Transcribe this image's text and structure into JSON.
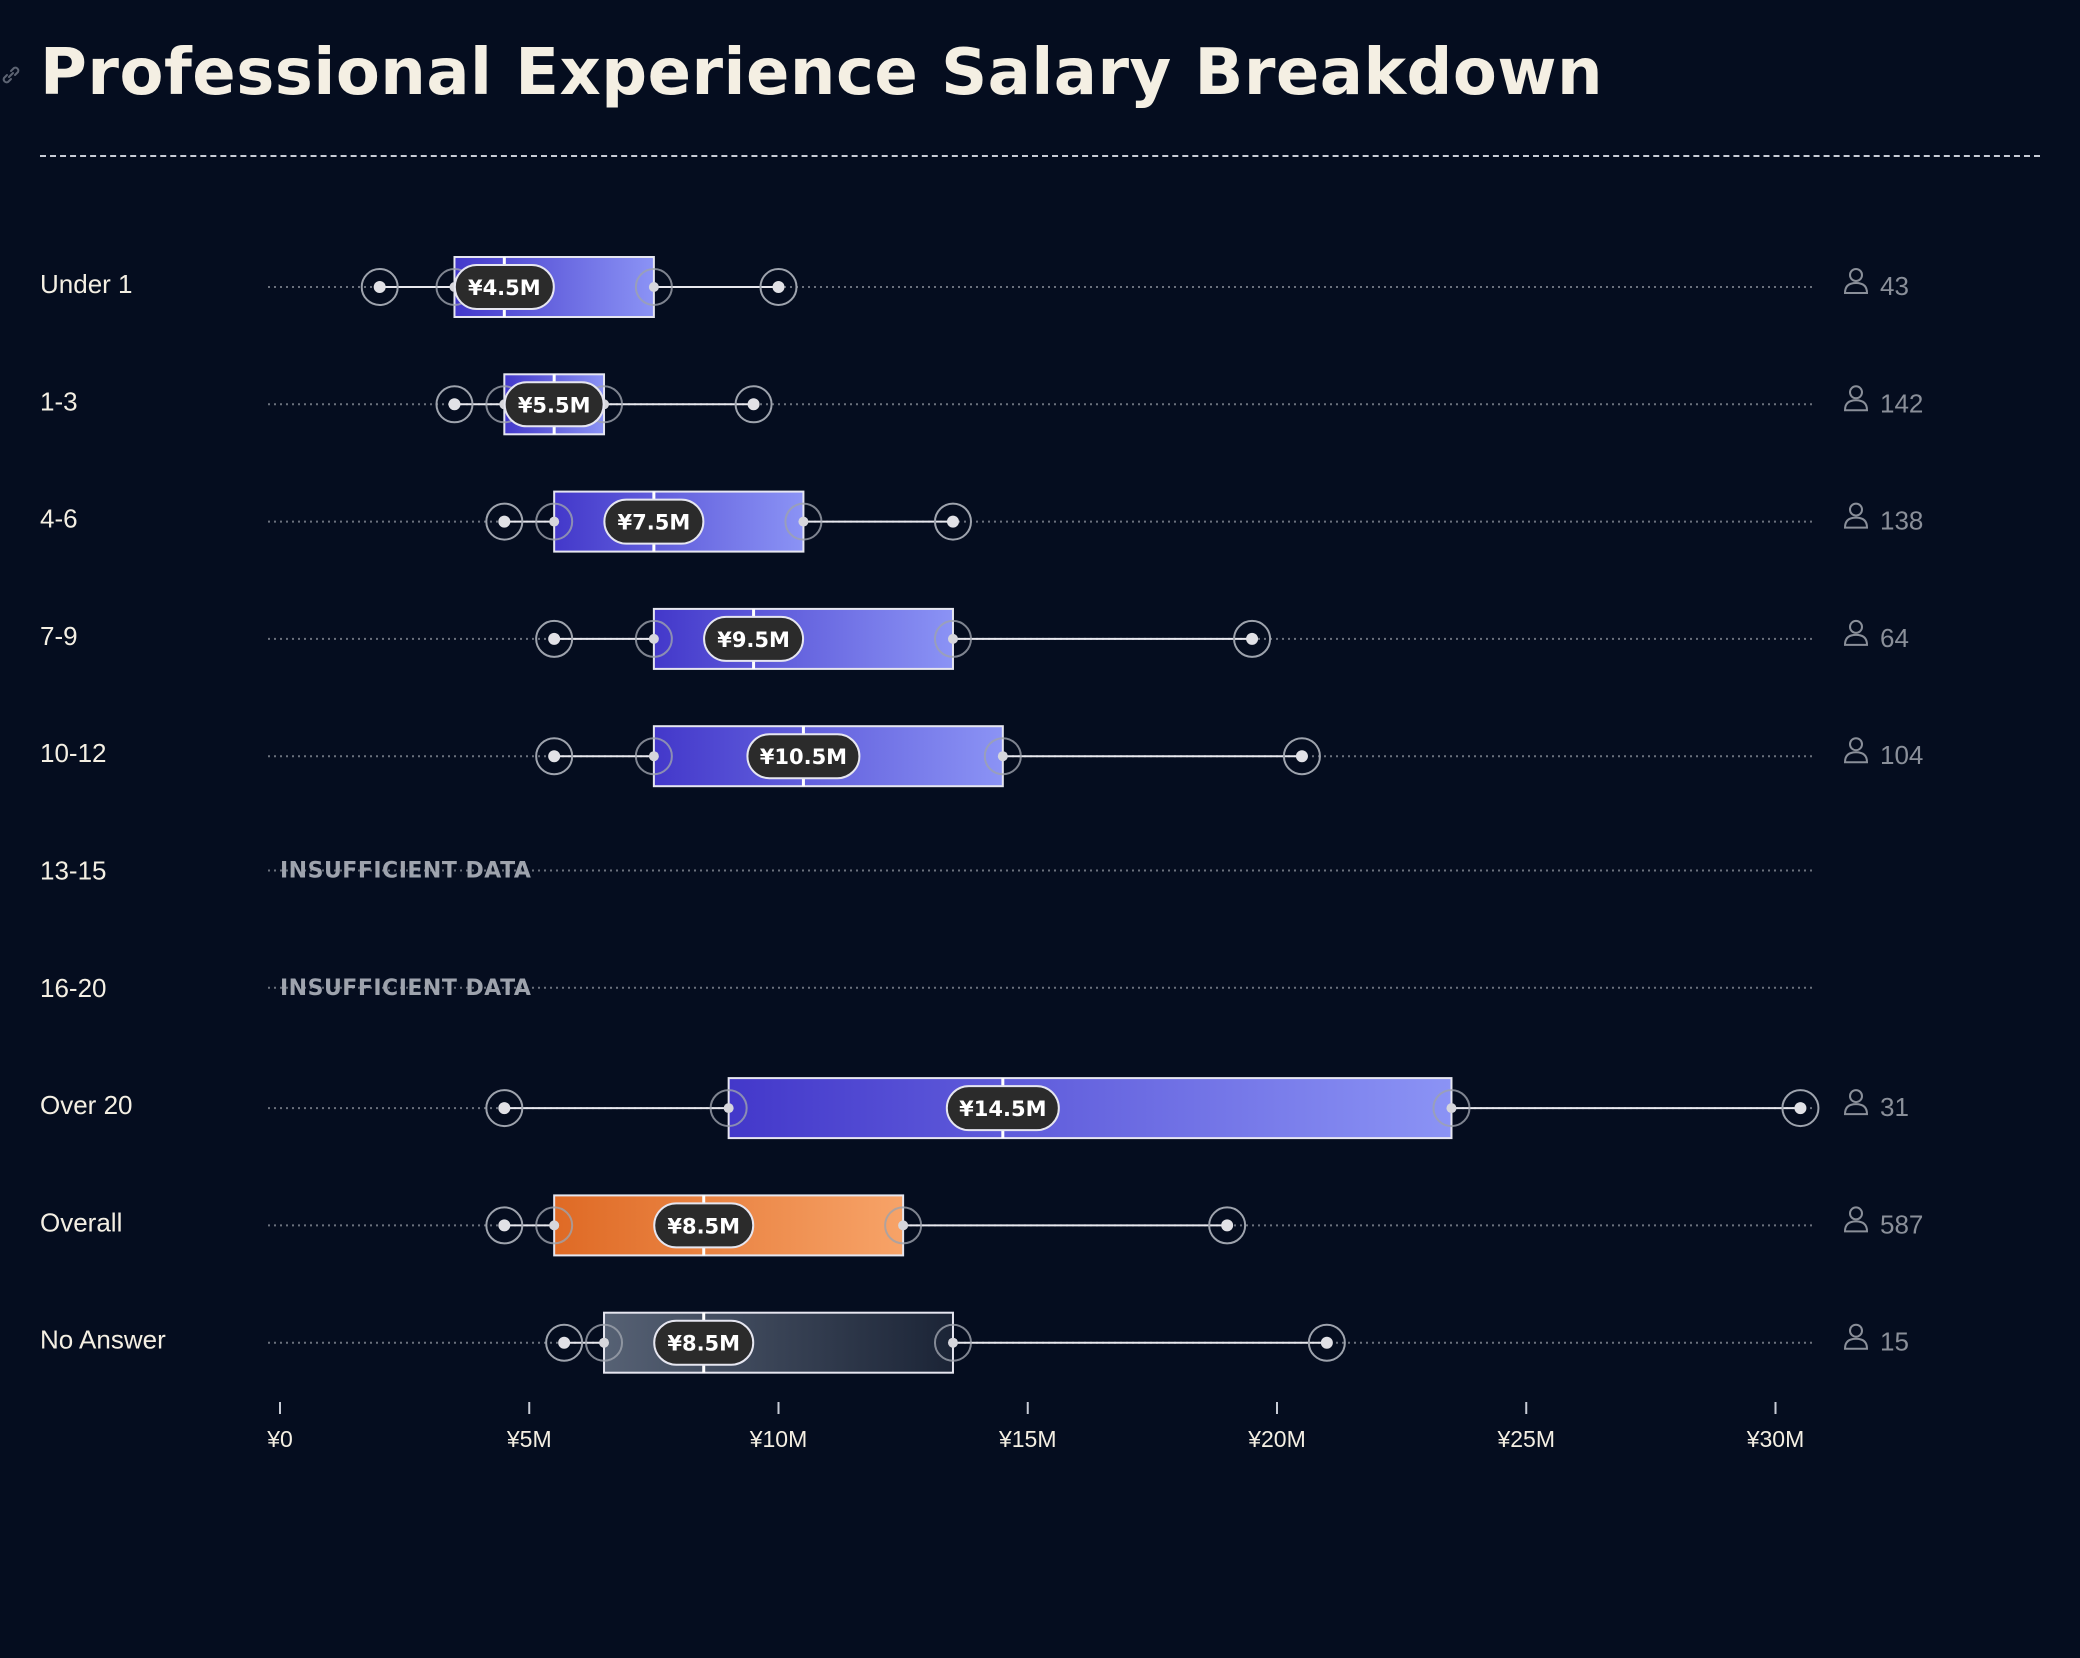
{
  "title": "Professional Experience Salary Breakdown",
  "chart_data": {
    "type": "boxplot",
    "orientation": "horizontal",
    "x_unit": "¥M",
    "xlim": [
      0,
      31
    ],
    "x_ticks": [
      {
        "value": 0,
        "label": "¥0"
      },
      {
        "value": 5,
        "label": "¥5M"
      },
      {
        "value": 10,
        "label": "¥10M"
      },
      {
        "value": 15,
        "label": "¥15M"
      },
      {
        "value": 20,
        "label": "¥20M"
      },
      {
        "value": 25,
        "label": "¥25M"
      },
      {
        "value": 30,
        "label": "¥30M"
      }
    ],
    "insufficient_label": "INSUFFICIENT DATA",
    "colors": {
      "background": "#050d1f",
      "group_box_start": "#4338ca",
      "group_box_end": "#8b93f5",
      "overall_box_start": "#df6a25",
      "overall_box_end": "#f7a368",
      "noanswer_box_start": "#566174",
      "noanswer_box_end": "#1b2436",
      "median_label_bg": "#2b2b2b",
      "text": "#f4efe3",
      "muted": "#8a8f99"
    },
    "groups": [
      {
        "label": "Under 1",
        "min": 2,
        "q1": 3.5,
        "median": 4.5,
        "q3": 7.5,
        "max": 10,
        "count": "43",
        "median_label": "¥4.5M",
        "style": "group"
      },
      {
        "label": "1-3",
        "min": 3.5,
        "q1": 4.5,
        "median": 5.5,
        "q3": 6.5,
        "max": 9.5,
        "count": "142",
        "median_label": "¥5.5M",
        "style": "group"
      },
      {
        "label": "4-6",
        "min": 4.5,
        "q1": 5.5,
        "median": 7.5,
        "q3": 10.5,
        "max": 13.5,
        "count": "138",
        "median_label": "¥7.5M",
        "style": "group"
      },
      {
        "label": "7-9",
        "min": 5.5,
        "q1": 7.5,
        "median": 9.5,
        "q3": 13.5,
        "max": 19.5,
        "count": "64",
        "median_label": "¥9.5M",
        "style": "group"
      },
      {
        "label": "10-12",
        "min": 5.5,
        "q1": 7.5,
        "median": 10.5,
        "q3": 14.5,
        "max": 20.5,
        "count": "104",
        "median_label": "¥10.5M",
        "style": "group"
      },
      {
        "label": "13-15",
        "insufficient": true
      },
      {
        "label": "16-20",
        "insufficient": true
      },
      {
        "label": "Over 20",
        "min": 4.5,
        "q1": 9,
        "median": 14.5,
        "q3": 23.5,
        "max": 30.5,
        "count": "31",
        "median_label": "¥14.5M",
        "style": "group"
      },
      {
        "label": "Overall",
        "min": 4.5,
        "q1": 5.5,
        "median": 8.5,
        "q3": 12.5,
        "max": 19,
        "count": "587",
        "median_label": "¥8.5M",
        "style": "overall"
      },
      {
        "label": "No Answer",
        "min": 5.7,
        "q1": 6.5,
        "median": 8.5,
        "q3": 13.5,
        "max": 21,
        "count": "15",
        "median_label": "¥8.5M",
        "style": "noanswer"
      }
    ]
  }
}
